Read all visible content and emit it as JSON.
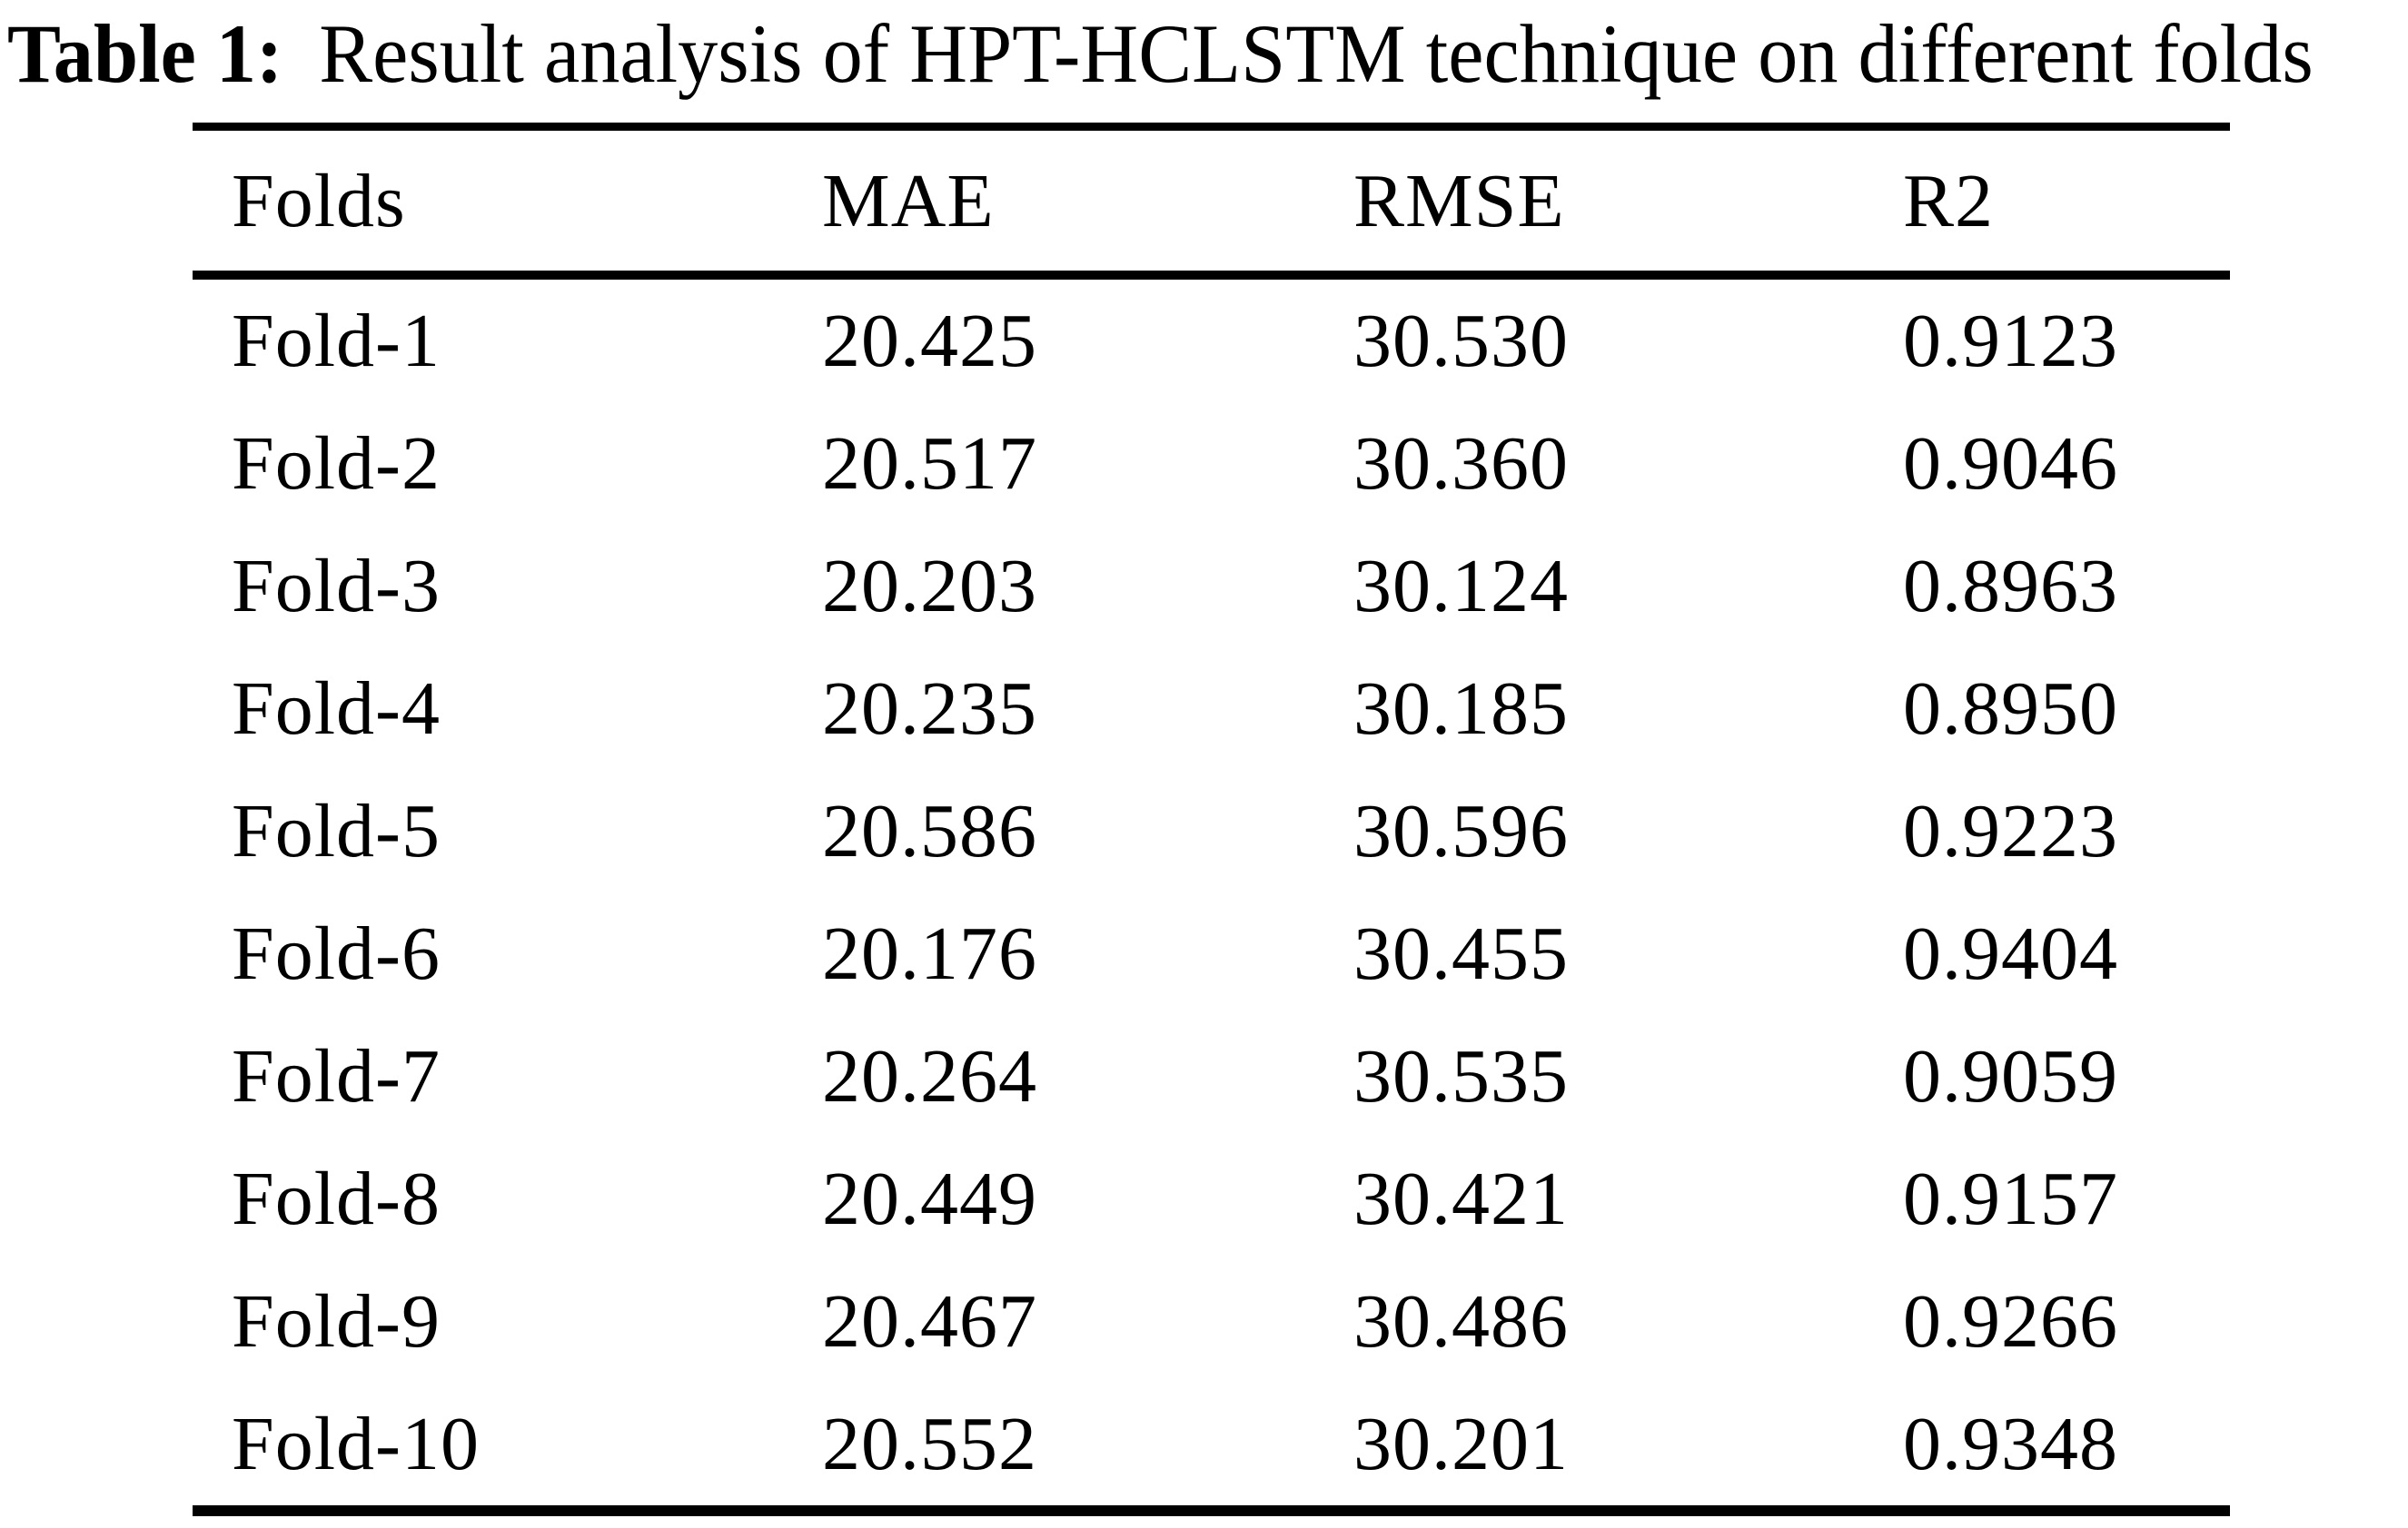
{
  "caption": {
    "label": "Table 1:",
    "text": "Result analysis of HPT-HCLSTM technique on different folds"
  },
  "table": {
    "columns": [
      "Folds",
      "MAE",
      "RMSE",
      "R2"
    ],
    "rows": [
      [
        "Fold-1",
        "20.425",
        "30.530",
        "0.9123"
      ],
      [
        "Fold-2",
        "20.517",
        "30.360",
        "0.9046"
      ],
      [
        "Fold-3",
        "20.203",
        "30.124",
        "0.8963"
      ],
      [
        "Fold-4",
        "20.235",
        "30.185",
        "0.8950"
      ],
      [
        "Fold-5",
        "20.586",
        "30.596",
        "0.9223"
      ],
      [
        "Fold-6",
        "20.176",
        "30.455",
        "0.9404"
      ],
      [
        "Fold-7",
        "20.264",
        "30.535",
        "0.9059"
      ],
      [
        "Fold-8",
        "20.449",
        "30.421",
        "0.9157"
      ],
      [
        "Fold-9",
        "20.467",
        "30.486",
        "0.9266"
      ],
      [
        "Fold-10",
        "20.552",
        "30.201",
        "0.9348"
      ]
    ]
  },
  "chart_data": {
    "type": "table",
    "title": "Table 1: Result analysis of HPT-HCLSTM technique on different folds",
    "columns": [
      "Folds",
      "MAE",
      "RMSE",
      "R2"
    ],
    "rows": [
      [
        "Fold-1",
        20.425,
        30.53,
        0.9123
      ],
      [
        "Fold-2",
        20.517,
        30.36,
        0.9046
      ],
      [
        "Fold-3",
        20.203,
        30.124,
        0.8963
      ],
      [
        "Fold-4",
        20.235,
        30.185,
        0.895
      ],
      [
        "Fold-5",
        20.586,
        30.596,
        0.9223
      ],
      [
        "Fold-6",
        20.176,
        30.455,
        0.9404
      ],
      [
        "Fold-7",
        20.264,
        30.535,
        0.9059
      ],
      [
        "Fold-8",
        20.449,
        30.421,
        0.9157
      ],
      [
        "Fold-9",
        20.467,
        30.486,
        0.9266
      ],
      [
        "Fold-10",
        20.552,
        30.201,
        0.9348
      ]
    ]
  }
}
